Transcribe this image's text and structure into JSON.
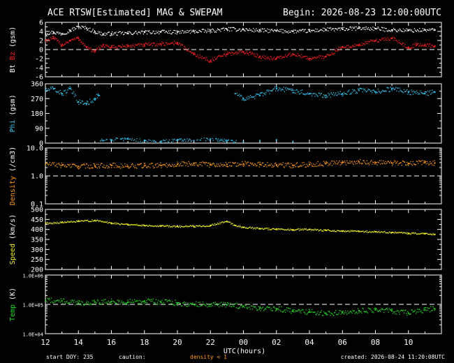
{
  "header": {
    "title": "ACE RTSW[Estimated] MAG & SWEPAM",
    "begin": "Begin: 2026-08-23 12:00:00UTC"
  },
  "colors": {
    "bt": "#ffffff",
    "bz": "#ff2020",
    "phi": "#2fc6f0",
    "density": "#ff9a1a",
    "speed": "#f0f020",
    "temp": "#22dd22",
    "axes": "#ffffff",
    "background": "#000000",
    "caution": "#ff9a1a"
  },
  "footer": {
    "start_doy": "start DOY: 235",
    "caution_label": "caution:",
    "caution_text": "density < 1",
    "created": "created: 2026-08-24 11:20:08UTC"
  },
  "chart_data": {
    "x": {
      "label": "UTC(hours)",
      "ticks": [
        "12",
        "14",
        "16",
        "18",
        "20",
        "22",
        "00",
        "02",
        "04",
        "06",
        "08",
        "10"
      ],
      "range_hours": [
        0,
        24
      ]
    },
    "panels": [
      {
        "id": "mag",
        "type": "scatter",
        "ylabel_parts": [
          {
            "text": "Bt",
            "color": "#ffffff"
          },
          {
            "text": "Bz",
            "color": "#ff2020"
          },
          {
            "text": "(gsm)",
            "color": "#ffffff"
          }
        ],
        "ylim": [
          -6,
          6
        ],
        "yticks": [
          6,
          4,
          2,
          0,
          -2,
          -4,
          -6
        ],
        "ytick_labels": [
          "6",
          "4",
          "2",
          "0",
          "-2",
          "-4",
          "-6"
        ],
        "dashed_line": 0,
        "series": [
          {
            "name": "Bt",
            "color": "#ffffff",
            "points": [
              [
                0,
                3.6
              ],
              [
                0.5,
                3.8
              ],
              [
                1,
                3.5
              ],
              [
                1.5,
                4.2
              ],
              [
                2,
                5.0
              ],
              [
                2.5,
                4.7
              ],
              [
                3,
                3.9
              ],
              [
                3.5,
                3.4
              ],
              [
                4,
                3.5
              ],
              [
                5,
                3.6
              ],
              [
                6,
                3.8
              ],
              [
                7,
                3.9
              ],
              [
                8,
                3.8
              ],
              [
                9,
                4.0
              ],
              [
                10,
                4.1
              ],
              [
                11,
                4.5
              ],
              [
                12,
                4.4
              ],
              [
                13,
                4.2
              ],
              [
                14,
                4.1
              ],
              [
                15,
                4.0
              ],
              [
                16,
                4.1
              ],
              [
                17,
                4.4
              ],
              [
                18,
                4.5
              ],
              [
                19,
                4.7
              ],
              [
                20,
                4.6
              ],
              [
                21,
                4.3
              ],
              [
                22,
                4.2
              ],
              [
                23,
                4.3
              ],
              [
                23.6,
                4.3
              ]
            ]
          },
          {
            "name": "Bz",
            "color": "#ff2020",
            "points": [
              [
                0,
                2.0
              ],
              [
                0.5,
                2.5
              ],
              [
                1,
                1.0
              ],
              [
                1.5,
                2.0
              ],
              [
                2,
                2.5
              ],
              [
                2.5,
                0.5
              ],
              [
                3,
                -0.5
              ],
              [
                3.5,
                1.0
              ],
              [
                4,
                0.5
              ],
              [
                5,
                0.8
              ],
              [
                6,
                1.0
              ],
              [
                7,
                1.2
              ],
              [
                8,
                1.5
              ],
              [
                9,
                -1.0
              ],
              [
                10,
                -2.5
              ],
              [
                11,
                -1.0
              ],
              [
                12,
                -0.5
              ],
              [
                13,
                -1.5
              ],
              [
                14,
                -2.0
              ],
              [
                15,
                -1.0
              ],
              [
                16,
                -2.0
              ],
              [
                17,
                -1.5
              ],
              [
                18,
                0.5
              ],
              [
                19,
                1.0
              ],
              [
                20,
                2.0
              ],
              [
                21,
                2.5
              ],
              [
                22,
                0.5
              ],
              [
                22.5,
                1.0
              ],
              [
                23,
                1.0
              ],
              [
                23.6,
                0.8
              ]
            ]
          }
        ]
      },
      {
        "id": "phi",
        "type": "scatter",
        "ylabel_parts": [
          {
            "text": "Phi",
            "color": "#2fc6f0"
          },
          {
            "text": "(gsm)",
            "color": "#ffffff"
          }
        ],
        "ylim": [
          0,
          360
        ],
        "yticks": [
          360,
          270,
          180,
          90,
          0
        ],
        "ytick_labels": [
          "360",
          "270",
          "180",
          "90",
          "0"
        ],
        "series": [
          {
            "name": "Phi",
            "color": "#2fc6f0",
            "points": [
              [
                0,
                320
              ],
              [
                0.5,
                330
              ],
              [
                1,
                300
              ],
              [
                1.5,
                330
              ],
              [
                2,
                250
              ],
              [
                2.5,
                240
              ],
              [
                3,
                270
              ],
              [
                3.2,
                290
              ],
              [
                3.5,
                15
              ],
              [
                4,
                20
              ],
              [
                5,
                25
              ],
              [
                6,
                15
              ],
              [
                7,
                10
              ],
              [
                8,
                20
              ],
              [
                9,
                15
              ],
              [
                10,
                25
              ],
              [
                11,
                15
              ],
              [
                12,
                10
              ],
              [
                13,
                15
              ],
              [
                14,
                20
              ],
              [
                15,
                10
              ],
              [
                11.5,
                300
              ],
              [
                12,
                270
              ],
              [
                13,
                290
              ],
              [
                14,
                330
              ],
              [
                15,
                320
              ],
              [
                16,
                300
              ],
              [
                17,
                290
              ],
              [
                18,
                300
              ],
              [
                19,
                320
              ],
              [
                20,
                310
              ],
              [
                21,
                330
              ],
              [
                22,
                310
              ],
              [
                23,
                300
              ],
              [
                23.6,
                310
              ]
            ]
          }
        ]
      },
      {
        "id": "density",
        "type": "scatter",
        "ylabel_parts": [
          {
            "text": "Density",
            "color": "#ff9a1a"
          },
          {
            "text": "(/cm3)",
            "color": "#ffffff"
          }
        ],
        "log": true,
        "ylim": [
          0.1,
          10
        ],
        "yticks": [
          10,
          1,
          0.1
        ],
        "ytick_labels": [
          "10.0",
          "1.0",
          "0.1"
        ],
        "dashed_line": 1,
        "series": [
          {
            "name": "Density",
            "color": "#ff9a1a",
            "points": [
              [
                0,
                2.7
              ],
              [
                1,
                2.4
              ],
              [
                2,
                2.2
              ],
              [
                3,
                2.3
              ],
              [
                4,
                2.4
              ],
              [
                5,
                2.2
              ],
              [
                6,
                2.3
              ],
              [
                7,
                2.4
              ],
              [
                8,
                2.6
              ],
              [
                9,
                2.8
              ],
              [
                10,
                2.5
              ],
              [
                11,
                2.6
              ],
              [
                12,
                2.7
              ],
              [
                13,
                2.6
              ],
              [
                14,
                2.5
              ],
              [
                15,
                2.4
              ],
              [
                16,
                2.6
              ],
              [
                17,
                2.8
              ],
              [
                18,
                3.0
              ],
              [
                19,
                3.2
              ],
              [
                20,
                3.0
              ],
              [
                21,
                2.9
              ],
              [
                22,
                2.8
              ],
              [
                23,
                3.0
              ],
              [
                23.6,
                2.9
              ]
            ]
          }
        ]
      },
      {
        "id": "speed",
        "type": "scatter",
        "ylabel_parts": [
          {
            "text": "Speed",
            "color": "#f0f020"
          },
          {
            "text": "(km/s)",
            "color": "#ffffff"
          }
        ],
        "ylim": [
          200,
          500
        ],
        "yticks": [
          500,
          450,
          400,
          350,
          300,
          250,
          200
        ],
        "ytick_labels": [
          "500",
          "450",
          "400",
          "350",
          "300",
          "250",
          "200"
        ],
        "series": [
          {
            "name": "Speed",
            "color": "#f0f020",
            "points": [
              [
                0,
                430
              ],
              [
                1,
                435
              ],
              [
                2,
                440
              ],
              [
                3,
                445
              ],
              [
                4,
                432
              ],
              [
                5,
                425
              ],
              [
                6,
                420
              ],
              [
                7,
                418
              ],
              [
                8,
                415
              ],
              [
                9,
                415
              ],
              [
                10,
                420
              ],
              [
                11,
                440
              ],
              [
                11.5,
                420
              ],
              [
                12,
                410
              ],
              [
                13,
                405
              ],
              [
                14,
                400
              ],
              [
                15,
                398
              ],
              [
                16,
                400
              ],
              [
                17,
                395
              ],
              [
                18,
                392
              ],
              [
                19,
                390
              ],
              [
                20,
                388
              ],
              [
                21,
                385
              ],
              [
                22,
                380
              ],
              [
                23,
                378
              ],
              [
                23.6,
                375
              ]
            ]
          }
        ]
      },
      {
        "id": "temp",
        "type": "scatter",
        "ylabel_parts": [
          {
            "text": "Temp",
            "color": "#22dd22"
          },
          {
            "text": "(K)",
            "color": "#ffffff"
          }
        ],
        "log": true,
        "ylim": [
          10000,
          1000000
        ],
        "yticks": [
          1000000,
          100000,
          10000
        ],
        "ytick_labels": [
          "1.0E+06",
          "1.0E+05",
          "1.0E+04"
        ],
        "dashed_line": 100000,
        "series": [
          {
            "name": "Temp",
            "color": "#22dd22",
            "points": [
              [
                0,
                140000
              ],
              [
                1,
                130000
              ],
              [
                2,
                110000
              ],
              [
                3,
                120000
              ],
              [
                4,
                125000
              ],
              [
                5,
                118000
              ],
              [
                6,
                130000
              ],
              [
                7,
                120000
              ],
              [
                8,
                112000
              ],
              [
                9,
                100000
              ],
              [
                10,
                98000
              ],
              [
                11,
                95000
              ],
              [
                12,
                85000
              ],
              [
                13,
                75000
              ],
              [
                14,
                70000
              ],
              [
                15,
                60000
              ],
              [
                16,
                55000
              ],
              [
                17,
                50000
              ],
              [
                18,
                52000
              ],
              [
                19,
                60000
              ],
              [
                20,
                65000
              ],
              [
                21,
                60000
              ],
              [
                22,
                50000
              ],
              [
                23,
                65000
              ],
              [
                23.6,
                70000
              ]
            ]
          }
        ]
      }
    ]
  }
}
